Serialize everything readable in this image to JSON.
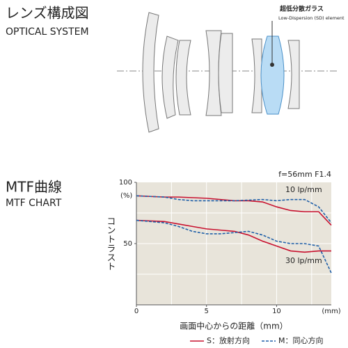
{
  "optical_system": {
    "title_ja": "レンズ構成図",
    "title_en": "OPTICAL SYSTEM",
    "annotation_ja": "超低分散ガラス",
    "annotation_en": "Low-Dispersion (SD) element"
  },
  "mtf": {
    "title_ja": "MTF曲線",
    "title_en": "MTF CHART"
  },
  "chart_data": {
    "type": "line",
    "subtitle": "f=56mm F1.4",
    "y_label": "コントラスト",
    "y_unit": "(%)",
    "x_label": "画面中心からの距離（mm）",
    "x_unit": "(mm)",
    "xlim": [
      0,
      13.9
    ],
    "ylim": [
      0,
      100
    ],
    "xticks": [
      0,
      5,
      10
    ],
    "yticks": [
      50,
      100
    ],
    "xgrid": [
      2.5,
      5,
      7.5,
      10,
      12.5
    ],
    "ygrid": [
      25,
      50,
      75
    ],
    "grid": true,
    "annotations": [
      "10 lp/mm",
      "30 lp/mm"
    ],
    "legend": [
      {
        "name": "S：放射方向",
        "color": "#c8102e",
        "dash": false
      },
      {
        "name": "M：同心方向",
        "color": "#1f5fa8",
        "dash": true
      }
    ],
    "x": [
      0,
      1,
      2,
      3,
      4,
      5,
      6,
      7,
      8,
      9,
      10,
      11,
      12,
      13,
      13.9
    ],
    "series": [
      {
        "color": "#c8102e",
        "dash": false,
        "values": [
          89,
          88.5,
          88,
          88,
          87.5,
          87,
          86,
          85,
          85,
          84,
          80,
          77,
          76,
          76,
          65
        ]
      },
      {
        "color": "#1f5fa8",
        "dash": true,
        "values": [
          89,
          88.5,
          88,
          86,
          85,
          85,
          85,
          85,
          85.5,
          86,
          85,
          86,
          86,
          80,
          67
        ]
      },
      {
        "color": "#c8102e",
        "dash": false,
        "values": [
          69,
          68.5,
          68,
          66,
          64,
          62,
          61,
          60,
          57,
          52,
          48,
          44,
          43,
          44,
          44
        ]
      },
      {
        "color": "#1f5fa8",
        "dash": true,
        "values": [
          69,
          68,
          67,
          64,
          60,
          58,
          58,
          59,
          60,
          57,
          52,
          50,
          50,
          48,
          26
        ]
      }
    ]
  }
}
